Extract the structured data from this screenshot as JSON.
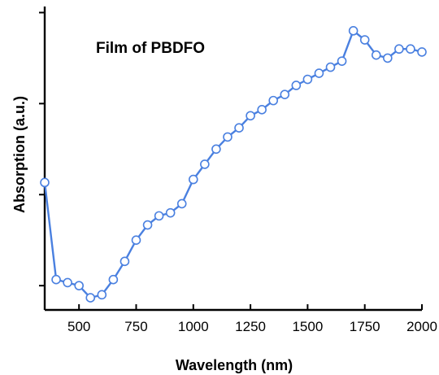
{
  "chart_data": {
    "type": "line",
    "title": "",
    "annotation": "Film of PBDFO",
    "xlabel": "Wavelength (nm)",
    "ylabel": "Absorption (a.u.)",
    "xlim": [
      350,
      2000
    ],
    "ylim": [
      0,
      1
    ],
    "x_tick_labels": [
      "500",
      "750",
      "1000",
      "1250",
      "1500",
      "1750",
      "2000"
    ],
    "x_ticks": [
      500,
      750,
      1000,
      1250,
      1500,
      1750,
      2000
    ],
    "y_ticks": [
      0.08,
      0.38,
      0.68,
      0.98
    ],
    "grid": false,
    "legend": "none",
    "series": [
      {
        "color": "#4a80e0",
        "x": [
          350,
          400,
          450,
          500,
          550,
          600,
          650,
          700,
          750,
          800,
          850,
          900,
          950,
          1000,
          1050,
          1100,
          1150,
          1200,
          1250,
          1300,
          1350,
          1400,
          1450,
          1500,
          1550,
          1600,
          1650,
          1700,
          1750,
          1800,
          1850,
          1900,
          1950,
          2000
        ],
        "y": [
          0.42,
          0.1,
          0.09,
          0.08,
          0.04,
          0.05,
          0.1,
          0.16,
          0.23,
          0.28,
          0.31,
          0.32,
          0.35,
          0.43,
          0.48,
          0.53,
          0.57,
          0.6,
          0.64,
          0.66,
          0.69,
          0.71,
          0.74,
          0.76,
          0.78,
          0.8,
          0.82,
          0.92,
          0.89,
          0.84,
          0.83,
          0.86,
          0.86,
          0.85
        ]
      }
    ]
  }
}
